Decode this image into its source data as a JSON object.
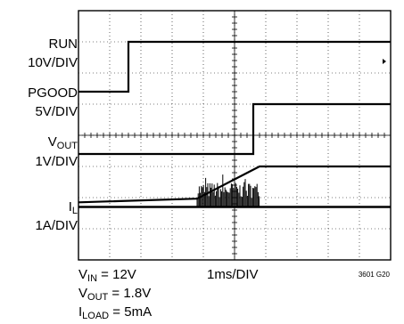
{
  "chart_data": {
    "type": "line",
    "title": "",
    "grid": true,
    "x_per_div": "1ms/DIV",
    "x_divisions": 10,
    "y_divisions": 8,
    "channels": [
      {
        "label_main": "RUN",
        "label_scale": "10V/DIV",
        "points": [
          [
            0,
            1
          ],
          [
            1.6,
            1
          ],
          [
            1.6,
            0
          ],
          [
            10,
            0
          ]
        ]
      },
      {
        "label_main": "PGOOD",
        "label_scale": "5V/DIV",
        "points": [
          [
            0,
            1
          ],
          [
            5.6,
            1
          ],
          [
            5.6,
            0
          ],
          [
            10,
            0
          ]
        ]
      },
      {
        "label_main": "V",
        "label_sub": "OUT",
        "label_scale": "1V/DIV",
        "points": [
          [
            0,
            1
          ],
          [
            3.8,
            0.9
          ],
          [
            5.8,
            0
          ],
          [
            10,
            0
          ]
        ]
      },
      {
        "label_main": "I",
        "label_sub": "L",
        "label_scale": "1A/DIV",
        "baseline_div": 5.35,
        "burst_start_div": 3.8,
        "burst_end_div": 5.8
      }
    ]
  },
  "footer": {
    "vin_main": "V",
    "vin_sub": "IN",
    "vin_value": " = 12V",
    "vout_main": "V",
    "vout_sub": "OUT",
    "vout_value": " = 1.8V",
    "iload_main": "I",
    "iload_sub": "LOAD",
    "iload_value": " = 5mA",
    "timebase": "1ms/DIV",
    "figure_code": "3601 G20"
  }
}
